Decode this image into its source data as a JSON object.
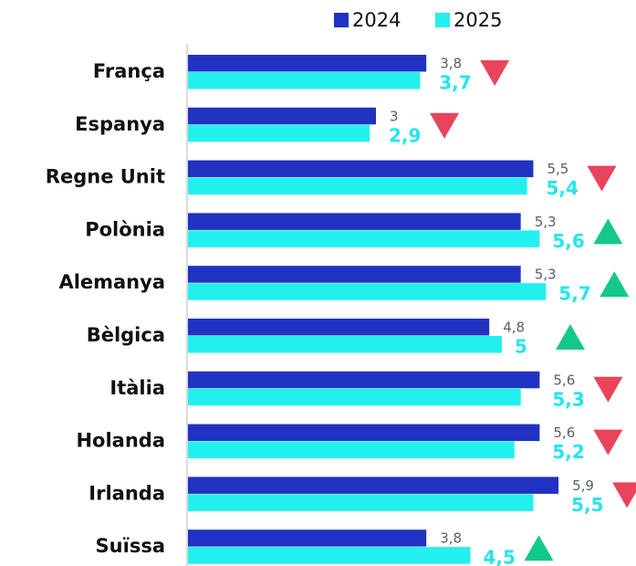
{
  "chart_data": {
    "type": "bar",
    "orientation": "horizontal",
    "categories": [
      "França",
      "Espanya",
      "Regne Unit",
      "Polònia",
      "Alemanya",
      "Bèlgica",
      "Itàlia",
      "Holanda",
      "Irlanda",
      "Suïssa"
    ],
    "series": [
      {
        "name": "2024",
        "color": "#2132c2",
        "values": [
          3.8,
          3,
          5.5,
          5.3,
          5.3,
          4.8,
          5.6,
          5.6,
          5.9,
          3.8
        ],
        "value_labels": [
          "3,8",
          "3",
          "5,5",
          "5,3",
          "5,3",
          "4,8",
          "5,6",
          "5,6",
          "5,9",
          "3,8"
        ]
      },
      {
        "name": "2025",
        "color": "#22f0ee",
        "values": [
          3.7,
          2.9,
          5.4,
          5.6,
          5.7,
          5,
          5.3,
          5.2,
          5.5,
          4.5
        ],
        "value_labels": [
          "3,7",
          "2,9",
          "5,4",
          "5,6",
          "5,7",
          "5",
          "5,3",
          "5,2",
          "5,5",
          "4,5"
        ]
      }
    ],
    "up_color": "#12c98a",
    "down_color": "#e8445a"
  }
}
